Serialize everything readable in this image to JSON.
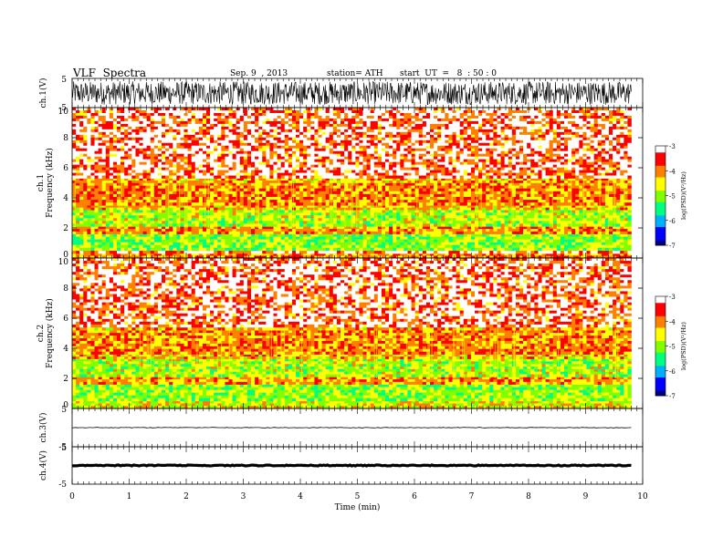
{
  "header": {
    "title": "VLF  Spectra",
    "date": "Sep. 9  , 2013",
    "station": "station= ATH",
    "start": "start  UT  =   8  : 50 : 0"
  },
  "chart_data": [
    {
      "type": "line",
      "panel": "ch1-waveform",
      "ylabel": "ch.1(V)",
      "ylim": [
        -5,
        5
      ],
      "yticks": [
        "5",
        "-5"
      ],
      "xlim": [
        0,
        10
      ],
      "description_of_signal": "dense broadband noise spanning about -4 to 4 V",
      "amplitude": 4.0
    },
    {
      "type": "heatmap",
      "panel": "ch1-spectrogram",
      "ylabel": "ch.1\nFrequency  (kHz)",
      "ylabel_lines": [
        "ch.1",
        "Frequency  (kHz)"
      ],
      "ylim": [
        0,
        10
      ],
      "yticks": [
        "0",
        "2",
        "4",
        "6",
        "8",
        "10"
      ],
      "xlim": [
        0,
        9.8
      ],
      "bands": [
        {
          "from": 0.0,
          "to": 0.3,
          "level": -4.0
        },
        {
          "from": 0.3,
          "to": 0.5,
          "level": -3.6
        },
        {
          "from": 0.5,
          "to": 1.6,
          "level": -5.0
        },
        {
          "from": 1.6,
          "to": 2.1,
          "level": -4.1
        },
        {
          "from": 2.1,
          "to": 3.2,
          "level": -4.8
        },
        {
          "from": 3.2,
          "to": 3.5,
          "level": -4.3
        },
        {
          "from": 3.5,
          "to": 5.0,
          "level": -4.0
        },
        {
          "from": 5.0,
          "to": 5.3,
          "level": -4.2
        },
        {
          "from": 5.3,
          "to": 10.0,
          "level": -3.7
        }
      ],
      "colorbar": {
        "label": "log(PSD)(V²/Hz)",
        "ticks": [
          "-3",
          "-4",
          "-5",
          "-6",
          "-7"
        ],
        "range": [
          -7,
          -3
        ]
      }
    },
    {
      "type": "heatmap",
      "panel": "ch2-spectrogram",
      "ylabel_lines": [
        "ch.2",
        "Frequency  (kHz)"
      ],
      "ylim": [
        0,
        10
      ],
      "yticks": [
        "0",
        "2",
        "4",
        "6",
        "8",
        "10"
      ],
      "xlim": [
        0,
        9.8
      ],
      "bands": [
        {
          "from": 0.0,
          "to": 0.5,
          "level": -4.6
        },
        {
          "from": 0.5,
          "to": 1.6,
          "level": -4.9
        },
        {
          "from": 1.6,
          "to": 2.1,
          "level": -4.1
        },
        {
          "from": 2.1,
          "to": 3.3,
          "level": -4.8
        },
        {
          "from": 3.3,
          "to": 3.6,
          "level": -4.3
        },
        {
          "from": 3.6,
          "to": 5.2,
          "level": -4.0
        },
        {
          "from": 5.2,
          "to": 5.4,
          "level": -4.2
        },
        {
          "from": 5.4,
          "to": 10.0,
          "level": -3.7
        }
      ],
      "colorbar": {
        "label": "log(PSD)(V²/Hz)",
        "ticks": [
          "-3",
          "-4",
          "-5",
          "-6",
          "-7"
        ],
        "range": [
          -7,
          -3
        ]
      }
    },
    {
      "type": "line",
      "panel": "ch3-waveform",
      "ylabel": "ch.3(V)",
      "ylim": [
        -5,
        5
      ],
      "yticks": [
        "5",
        "-5"
      ],
      "xlim": [
        0,
        10
      ],
      "level": 0.0,
      "amplitude": 0.15
    },
    {
      "type": "line",
      "panel": "ch4-waveform",
      "ylabel": "ch.4(V)",
      "ylim": [
        -5,
        5
      ],
      "yticks": [
        "5",
        "-5"
      ],
      "xlim": [
        0,
        10
      ],
      "level": 0.0,
      "amplitude": 0.25
    }
  ],
  "xaxis": {
    "label": "Time  (min)",
    "ticks": [
      "0",
      "1",
      "2",
      "3",
      "4",
      "5",
      "6",
      "7",
      "8",
      "9",
      "10"
    ],
    "range": [
      0,
      10
    ]
  },
  "colormap": [
    "#000080",
    "#0000ff",
    "#00b0ff",
    "#00ff80",
    "#80ff00",
    "#ffff00",
    "#ff8000",
    "#ff0000",
    "#ffffff"
  ]
}
